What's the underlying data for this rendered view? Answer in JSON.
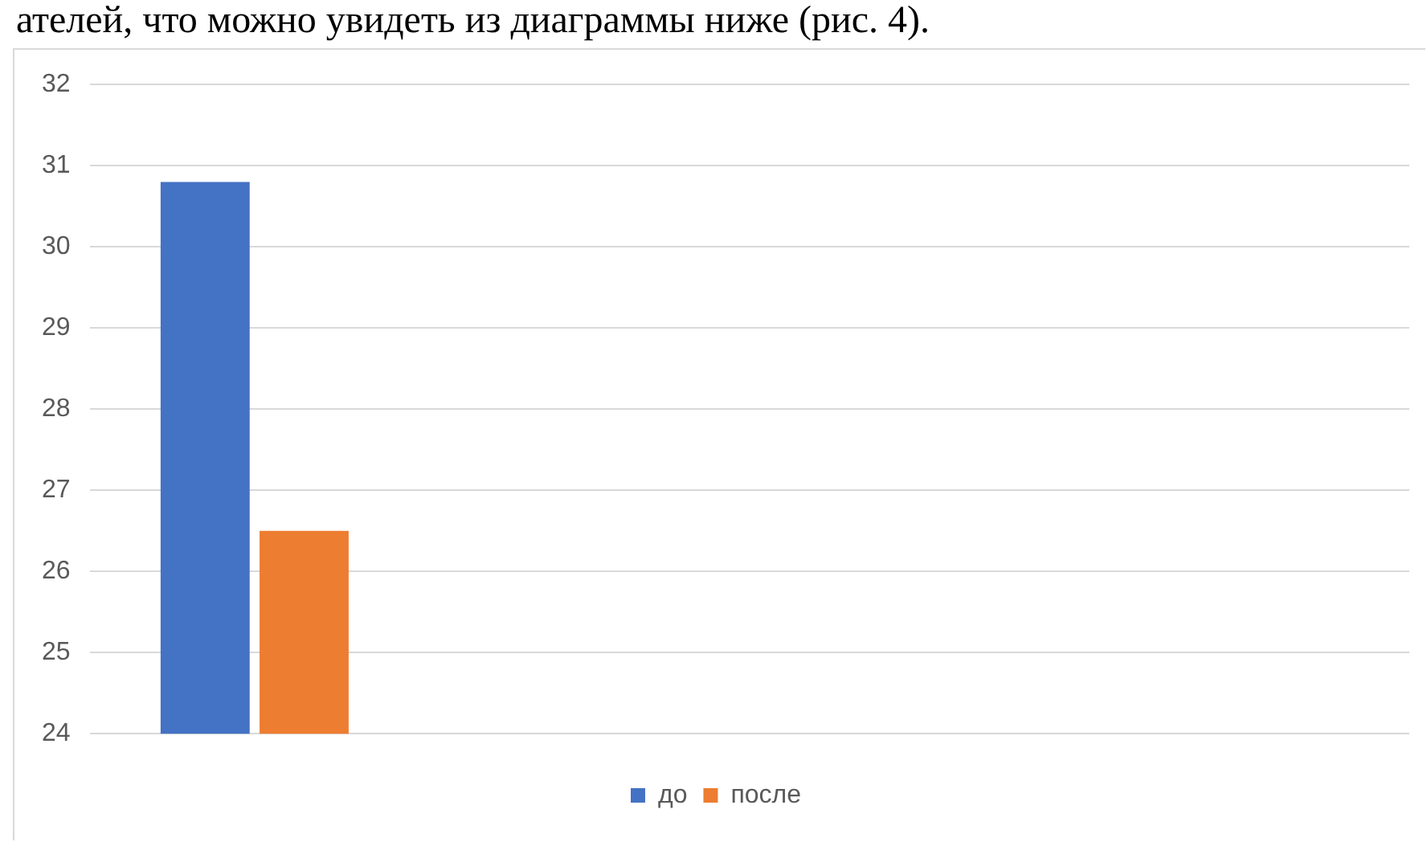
{
  "chart_data": {
    "type": "bar",
    "annotations": [
      "ателей, что можно увидеть из диаграммы ниже (рис. 4)."
    ],
    "categories": [
      null,
      null,
      null,
      null
    ],
    "series": [
      {
        "name": "до",
        "color": "#4472c4",
        "values": [
          30.8,
          null,
          null,
          null
        ]
      },
      {
        "name": "после",
        "color": "#ed7d31",
        "values": [
          26.5,
          null,
          null,
          null
        ]
      }
    ],
    "ylim": [
      24,
      32
    ],
    "yticks": [
      24,
      25,
      26,
      27,
      28,
      29,
      30,
      31,
      32
    ],
    "grid": "y",
    "legend": "bottom"
  }
}
